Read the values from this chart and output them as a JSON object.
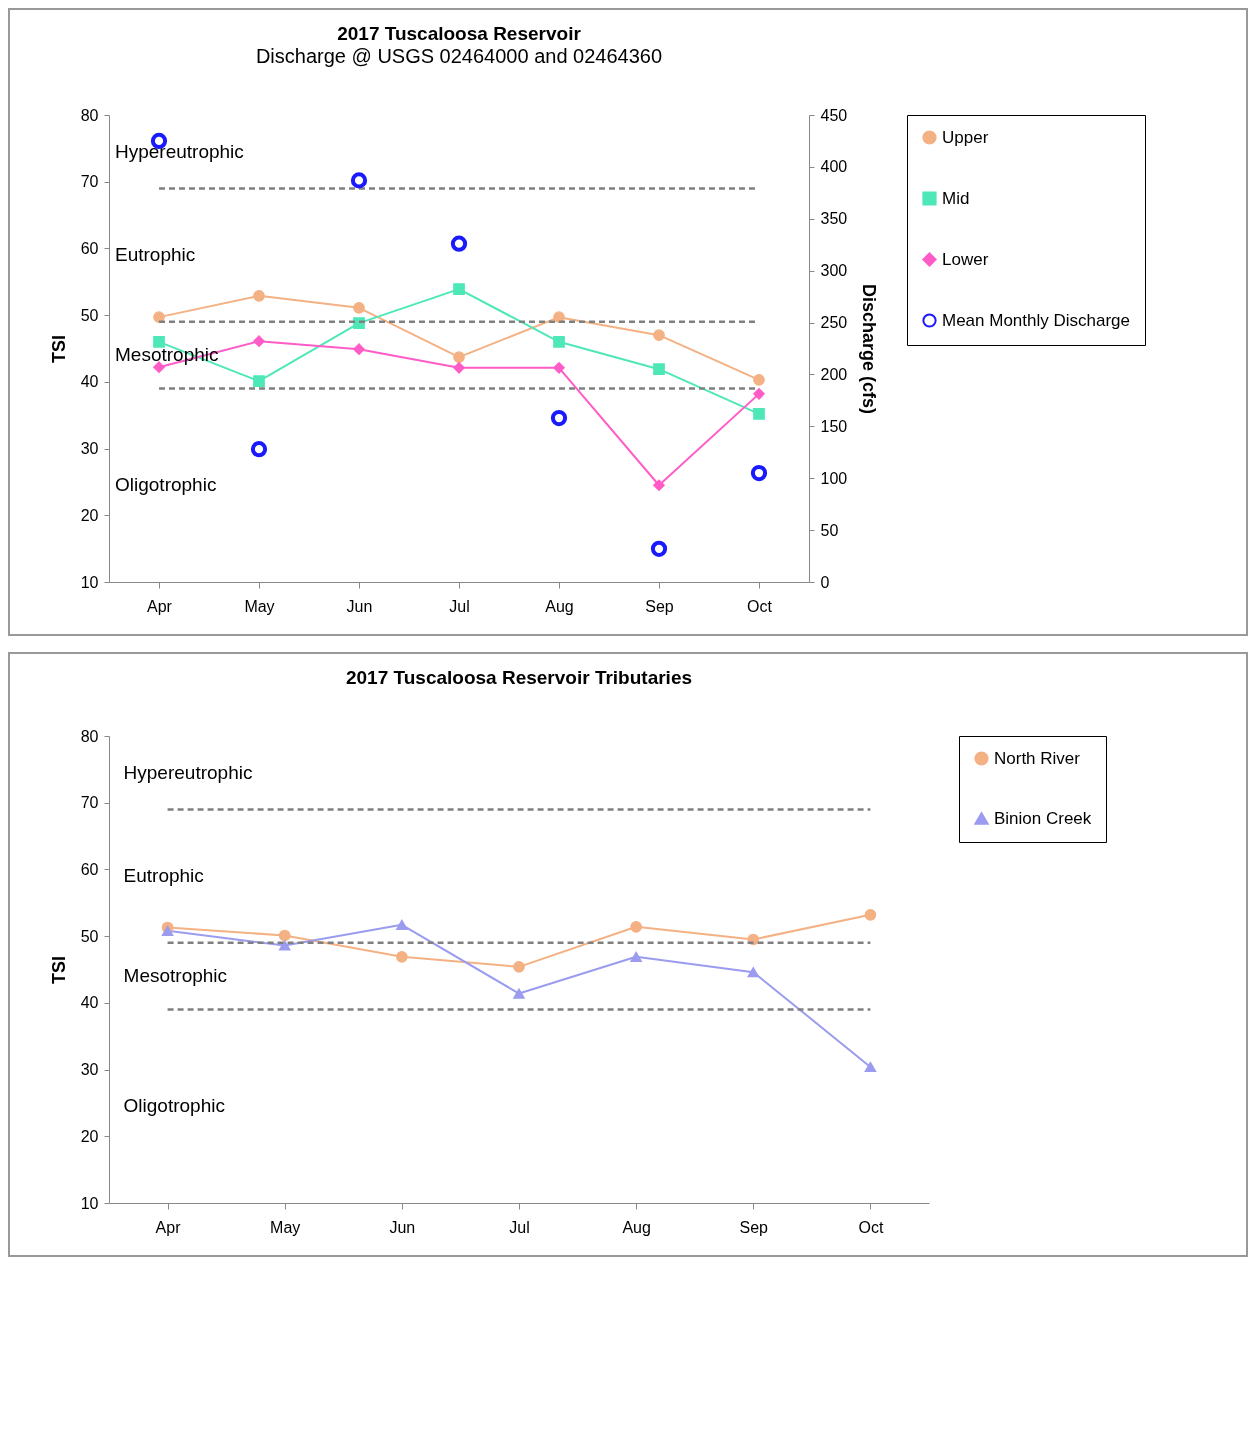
{
  "chart_data": [
    {
      "type": "line",
      "title": "2017 Tuscaloosa  Reservoir",
      "subtitle": "Discharge @ USGS 02464000 and 02464360",
      "ylabel": "TSI",
      "y2label": "Discharge (cfs)",
      "categories": [
        "Apr",
        "May",
        "Jun",
        "Jul",
        "Aug",
        "Sep",
        "Oct"
      ],
      "series": [
        {
          "name": "Upper",
          "color": "#f4b183",
          "marker": "circle",
          "values": [
            49.7,
            52.9,
            51.1,
            43.7,
            49.7,
            47.0,
            40.3
          ]
        },
        {
          "name": "Mid",
          "color": "#4ee8b8",
          "marker": "square",
          "values": [
            46.0,
            40.1,
            48.8,
            53.9,
            46.0,
            41.9,
            35.2
          ]
        },
        {
          "name": "Lower",
          "color": "#ff5cc8",
          "marker": "diamond",
          "values": [
            42.2,
            46.1,
            44.9,
            42.1,
            42.1,
            24.5,
            38.2
          ]
        },
        {
          "name": "Mean Monthly Discharge",
          "type": "scatter",
          "axis": "y2",
          "color": "#1a1aff",
          "marker": "circle",
          "values": [
            425,
            128,
            387,
            326,
            158,
            32,
            105
          ]
        }
      ],
      "ylim": [
        10,
        80
      ],
      "yticks": [
        10,
        20,
        30,
        40,
        50,
        60,
        70,
        80
      ],
      "y2lim": [
        0,
        450
      ],
      "y2ticks": [
        0,
        50,
        100,
        150,
        200,
        250,
        300,
        350,
        400,
        450
      ],
      "ref_lines": [
        {
          "axis": "y",
          "value": 69,
          "color": "#808080",
          "line_style": "dashed"
        },
        {
          "axis": "y",
          "value": 49,
          "color": "#808080",
          "line_style": "dashed"
        },
        {
          "axis": "y",
          "value": 39,
          "color": "#808080",
          "line_style": "dashed"
        }
      ],
      "annotations": [
        "Hypereutrophic",
        "Eutrophic",
        "Mesotrophic",
        "Oligotrophic"
      ],
      "legend": "right"
    },
    {
      "type": "line",
      "title": "2017 Tuscaloosa  Reservoir Tributaries",
      "ylabel": "TSI",
      "categories": [
        "Apr",
        "May",
        "Jun",
        "Jul",
        "Aug",
        "Sep",
        "Oct"
      ],
      "series": [
        {
          "name": "North River",
          "color": "#f4b183",
          "marker": "circle",
          "values": [
            51.3,
            50.1,
            46.9,
            45.4,
            51.4,
            49.5,
            53.2
          ]
        },
        {
          "name": "Binion Creek",
          "color": "#9b9bf0",
          "marker": "triangle",
          "values": [
            50.8,
            48.6,
            51.7,
            41.4,
            46.9,
            44.6,
            30.4
          ]
        }
      ],
      "ylim": [
        10,
        80
      ],
      "yticks": [
        10,
        20,
        30,
        40,
        50,
        60,
        70,
        80
      ],
      "ref_lines": [
        {
          "axis": "y",
          "value": 69,
          "color": "#808080",
          "line_style": "dashed"
        },
        {
          "axis": "y",
          "value": 49,
          "color": "#808080",
          "line_style": "dashed"
        },
        {
          "axis": "y",
          "value": 39,
          "color": "#808080",
          "line_style": "dashed"
        }
      ],
      "annotations": [
        "Hypereutrophic",
        "Eutrophic",
        "Mesotrophic",
        "Oligotrophic"
      ],
      "legend": "right"
    }
  ]
}
